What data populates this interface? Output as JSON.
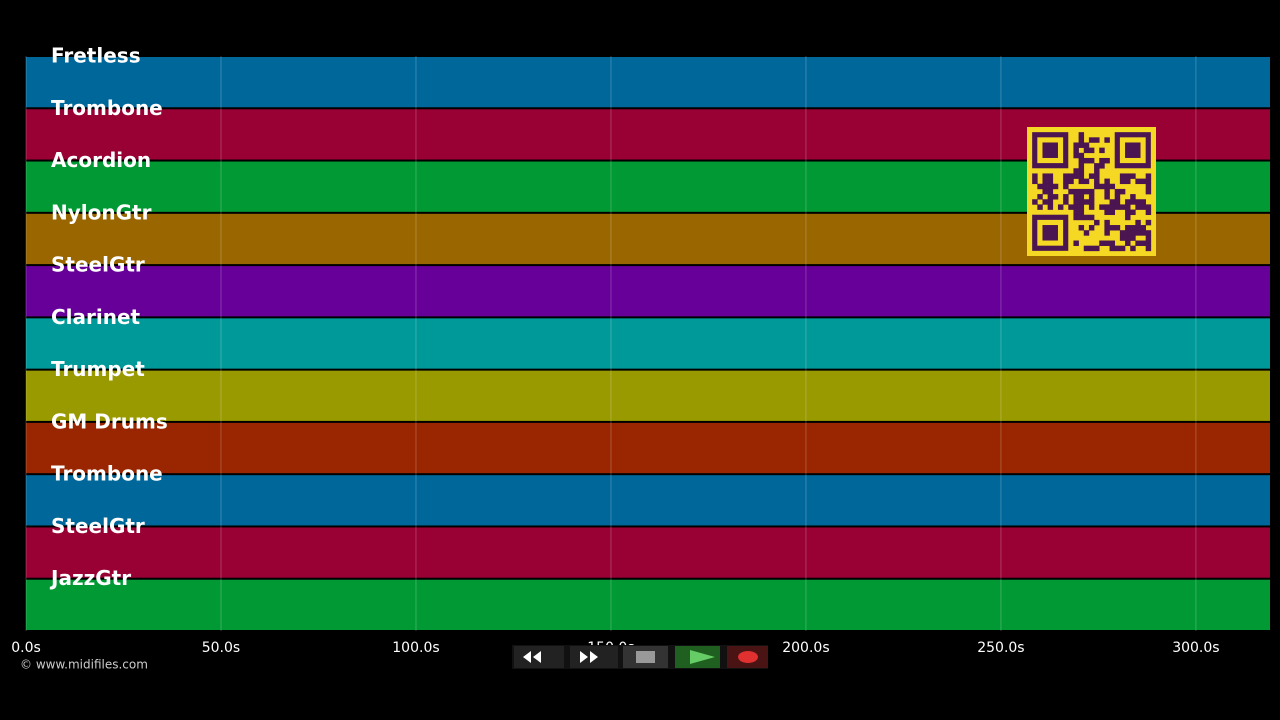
{
  "chart_data": {
    "type": "timeline",
    "tracks": [
      {
        "name": "Fretless",
        "color": "#00679a"
      },
      {
        "name": "Trombone",
        "color": "#990033"
      },
      {
        "name": "Acordion",
        "color": "#009933"
      },
      {
        "name": "NylonGtr",
        "color": "#996600"
      },
      {
        "name": "SteelGtr",
        "color": "#660099"
      },
      {
        "name": "Clarinet",
        "color": "#009999"
      },
      {
        "name": "Trumpet",
        "color": "#999900"
      },
      {
        "name": "GM Drums",
        "color": "#992600"
      },
      {
        "name": "Trombone",
        "color": "#00679a"
      },
      {
        "name": "SteelGtr",
        "color": "#990033"
      },
      {
        "name": "JazzGtr",
        "color": "#009933"
      }
    ],
    "xlim": [
      0,
      319
    ],
    "xticks": [
      {
        "value": 0,
        "label": "0.0s"
      },
      {
        "value": 50,
        "label": "50.0s"
      },
      {
        "value": 100,
        "label": "100.0s"
      },
      {
        "value": 150,
        "label": "150.0s"
      },
      {
        "value": 200,
        "label": "200.0s"
      },
      {
        "value": 250,
        "label": "250.0s"
      },
      {
        "value": 300,
        "label": "300.0s"
      }
    ],
    "grid": true
  },
  "footer": {
    "copyright": "© www.midifiles.com"
  }
}
